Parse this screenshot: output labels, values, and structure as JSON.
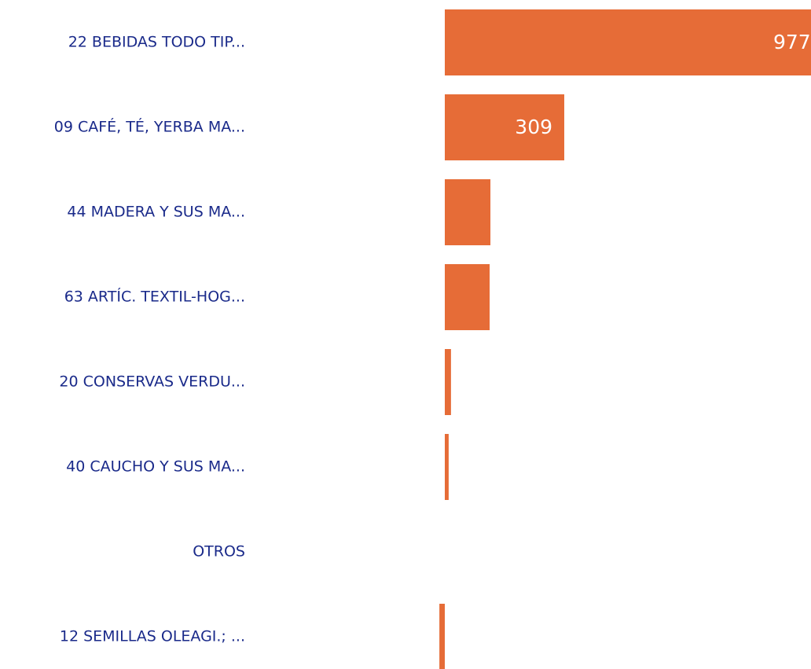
{
  "chart_data": {
    "type": "hbar",
    "categories": [
      "22 BEBIDAS TODO TIP...",
      "09 CAFÉ, TÉ, YERBA MA...",
      "44 MADERA Y SUS MA...",
      "63 ARTÍC. TEXTIL-HOG...",
      "20 CONSERVAS VERDU...",
      "40 CAUCHO Y SUS MA...",
      "OTROS",
      "12 SEMILLAS OLEAGI.; ..."
    ],
    "values": [
      977,
      309,
      118,
      116,
      16,
      10,
      0,
      -14
    ],
    "color": "#e66c37"
  }
}
